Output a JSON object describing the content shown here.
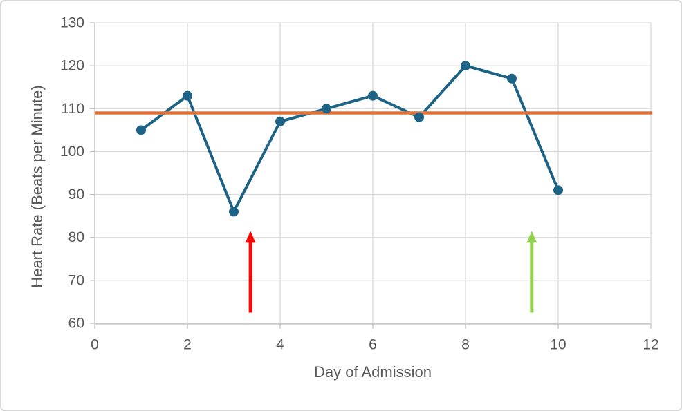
{
  "chart_data": {
    "type": "line",
    "title": "",
    "xlabel": "Day of Admission",
    "ylabel": "Heart Rate (Beats per Minute)",
    "x": [
      1,
      2,
      3,
      4,
      5,
      6,
      7,
      8,
      9,
      10
    ],
    "series": [
      {
        "name": "heart-rate",
        "values": [
          105,
          113,
          86,
          107,
          110,
          113,
          108,
          120,
          117,
          91
        ],
        "color": "#1C6386",
        "marker": "circle",
        "line_width": 4,
        "marker_radius": 7
      }
    ],
    "reference_line": {
      "value": 109,
      "color": "#E97132",
      "width": 4.5
    },
    "xlim": [
      0,
      12
    ],
    "ylim": [
      60,
      130
    ],
    "xticks": [
      0,
      2,
      4,
      6,
      8,
      10,
      12
    ],
    "yticks": [
      60,
      70,
      80,
      90,
      100,
      110,
      120,
      130
    ],
    "grid": true,
    "legend": "none",
    "annotations": [
      {
        "type": "arrow",
        "name": "red-arrow",
        "x": 3.36,
        "y_start": 62.5,
        "y_end": 81.5,
        "color": "#FB0505"
      },
      {
        "type": "arrow",
        "name": "green-arrow",
        "x": 9.43,
        "y_start": 62.5,
        "y_end": 81.5,
        "color": "#92D050"
      }
    ]
  },
  "style": {
    "axis_text_color": "#595959",
    "gridline_color": "#D9D9D9",
    "axis_line_color": "#BFBFBF",
    "tick_font_size": 21,
    "background": "#FFFFFF",
    "border_color": "#D8D8D8"
  }
}
